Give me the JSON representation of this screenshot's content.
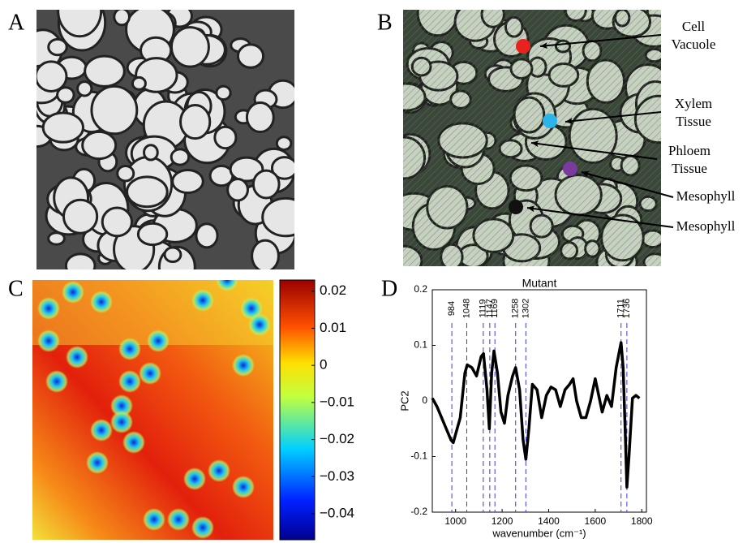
{
  "panels": [
    "A",
    "B",
    "C",
    "D"
  ],
  "annotations": [
    {
      "lines": [
        "Cell",
        "Vacuole"
      ],
      "color": "#e8231f"
    },
    {
      "lines": [
        "Xylem",
        "Tissue"
      ],
      "color": "#2ab4ea"
    },
    {
      "lines": [
        "Phloem",
        "Tissue"
      ],
      "color": null
    },
    {
      "lines": [
        "Mesophyll"
      ],
      "color": "#7a3a9e"
    },
    {
      "lines": [
        "Mesophyll"
      ],
      "color": "#111111"
    }
  ],
  "chart_data": [
    {
      "type": "heatmap",
      "clim": [
        -0.047,
        0.023
      ],
      "cticks": [
        0.02,
        0.01,
        0,
        {
          "value": -0.01,
          "label": "−0.01"
        },
        {
          "value": -0.02,
          "label": "−0.02"
        },
        {
          "value": -0.03,
          "label": "−0.03"
        },
        {
          "value": -0.04,
          "label": "−0.04"
        }
      ]
    },
    {
      "type": "line",
      "title": "Mutant",
      "xlabel": "wavenumber (cm⁻¹)",
      "ylabel": "PC2",
      "xlim": [
        900,
        1820
      ],
      "ylim": [
        -0.2,
        0.2
      ],
      "xticks": [
        1000,
        1200,
        1400,
        1600,
        1800
      ],
      "yticks": [
        -0.2,
        -0.1,
        0,
        0.1,
        0.2
      ],
      "peaks": [
        984,
        1048,
        1119,
        1147,
        1169,
        1258,
        1302,
        1711,
        1736
      ],
      "x": [
        900,
        920,
        940,
        960,
        980,
        990,
        1000,
        1020,
        1040,
        1050,
        1070,
        1090,
        1110,
        1120,
        1135,
        1145,
        1155,
        1165,
        1180,
        1195,
        1210,
        1225,
        1245,
        1258,
        1275,
        1290,
        1302,
        1315,
        1330,
        1350,
        1370,
        1390,
        1410,
        1430,
        1450,
        1470,
        1490,
        1505,
        1520,
        1540,
        1560,
        1580,
        1600,
        1615,
        1630,
        1650,
        1670,
        1690,
        1711,
        1720,
        1730,
        1736,
        1745,
        1760,
        1775,
        1790
      ],
      "series": [
        {
          "name": "PC2",
          "color": "#000000",
          "values": [
            0.005,
            -0.01,
            -0.03,
            -0.05,
            -0.07,
            -0.075,
            -0.06,
            -0.03,
            0.05,
            0.065,
            0.06,
            0.045,
            0.08,
            0.085,
            0.02,
            -0.05,
            0.05,
            0.09,
            0.05,
            -0.02,
            -0.04,
            0.01,
            0.045,
            0.06,
            0.02,
            -0.07,
            -0.105,
            -0.05,
            0.03,
            0.02,
            -0.03,
            0.01,
            0.025,
            0.02,
            -0.01,
            0.02,
            0.03,
            0.04,
            0.0,
            -0.03,
            -0.03,
            0.0,
            0.04,
            0.01,
            -0.02,
            0.01,
            -0.01,
            0.06,
            0.105,
            0.06,
            -0.07,
            -0.155,
            -0.1,
            0.005,
            0.01,
            0.005
          ]
        }
      ],
      "peak_color": "#3a3ae0"
    }
  ]
}
